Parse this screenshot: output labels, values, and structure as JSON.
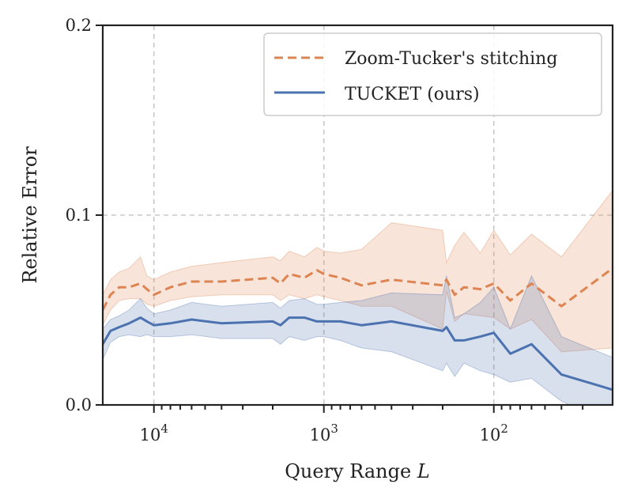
{
  "chart_data": {
    "type": "line",
    "title": "",
    "xlabel_prefix": "Query Range ",
    "xlabel_var": "L",
    "ylabel": "Relative Error",
    "x_scale": "log-reversed",
    "xlim": [
      20000,
      20
    ],
    "ylim": [
      0.0,
      0.2
    ],
    "grid": true,
    "legend_position": "top-right",
    "y_ticks": [
      {
        "value": 0.0,
        "label": "0.0"
      },
      {
        "value": 0.1,
        "label": "0.1"
      },
      {
        "value": 0.2,
        "label": "0.2"
      }
    ],
    "x_major_ticks": [
      {
        "value": 10000,
        "base": "10",
        "exp": "4"
      },
      {
        "value": 1000,
        "base": "10",
        "exp": "3"
      },
      {
        "value": 100,
        "base": "10",
        "exp": "2"
      }
    ],
    "x_minor_ticks": [
      9000,
      8000,
      7000,
      6000,
      5000,
      4000,
      3000,
      2000,
      900,
      800,
      700,
      600,
      500,
      400,
      300,
      200,
      90,
      80,
      70,
      60,
      50,
      40,
      30
    ],
    "series": [
      {
        "name": "Zoom-Tucker's stitching",
        "color": "#dd8452",
        "style": "dashed",
        "x": [
          20000,
          18000,
          16000,
          14000,
          12000,
          11000,
          10000,
          8000,
          6000,
          4000,
          2000,
          1800,
          1600,
          1300,
          1100,
          1000,
          800,
          600,
          400,
          200,
          190,
          170,
          150,
          120,
          100,
          80,
          60,
          40,
          20
        ],
        "y": [
          0.05,
          0.058,
          0.062,
          0.062,
          0.064,
          0.061,
          0.058,
          0.062,
          0.065,
          0.065,
          0.067,
          0.064,
          0.069,
          0.067,
          0.071,
          0.069,
          0.067,
          0.063,
          0.066,
          0.063,
          0.066,
          0.058,
          0.062,
          0.061,
          0.064,
          0.055,
          0.064,
          0.052,
          0.072
        ],
        "lower": [
          0.042,
          0.05,
          0.055,
          0.056,
          0.056,
          0.053,
          0.052,
          0.055,
          0.057,
          0.058,
          0.058,
          0.055,
          0.058,
          0.056,
          0.058,
          0.057,
          0.055,
          0.052,
          0.052,
          0.04,
          0.06,
          0.044,
          0.048,
          0.047,
          0.046,
          0.04,
          0.045,
          0.028,
          0.03
        ],
        "upper": [
          0.058,
          0.066,
          0.07,
          0.072,
          0.078,
          0.068,
          0.066,
          0.07,
          0.073,
          0.075,
          0.078,
          0.076,
          0.081,
          0.078,
          0.083,
          0.081,
          0.08,
          0.082,
          0.096,
          0.092,
          0.075,
          0.084,
          0.091,
          0.08,
          0.092,
          0.079,
          0.09,
          0.078,
          0.113
        ]
      },
      {
        "name": "TUCKET (ours)",
        "color": "#4c72b0",
        "style": "solid",
        "x": [
          20000,
          18000,
          16000,
          14000,
          12000,
          11000,
          10000,
          8000,
          6000,
          4000,
          2000,
          1800,
          1600,
          1300,
          1100,
          1000,
          800,
          600,
          400,
          200,
          190,
          170,
          150,
          120,
          100,
          80,
          60,
          40,
          20
        ],
        "y": [
          0.032,
          0.039,
          0.041,
          0.043,
          0.046,
          0.044,
          0.042,
          0.043,
          0.045,
          0.043,
          0.044,
          0.042,
          0.046,
          0.046,
          0.044,
          0.044,
          0.044,
          0.042,
          0.044,
          0.039,
          0.041,
          0.034,
          0.034,
          0.036,
          0.038,
          0.027,
          0.032,
          0.016,
          0.008
        ],
        "lower": [
          0.024,
          0.033,
          0.036,
          0.037,
          0.036,
          0.037,
          0.036,
          0.036,
          0.037,
          0.035,
          0.035,
          0.032,
          0.036,
          0.034,
          0.036,
          0.036,
          0.034,
          0.03,
          0.028,
          0.018,
          0.022,
          0.015,
          0.022,
          0.018,
          0.016,
          0.012,
          0.014,
          0.002,
          -0.01
        ],
        "upper": [
          0.04,
          0.045,
          0.047,
          0.05,
          0.056,
          0.051,
          0.048,
          0.05,
          0.054,
          0.052,
          0.054,
          0.051,
          0.055,
          0.056,
          0.053,
          0.053,
          0.054,
          0.055,
          0.059,
          0.058,
          0.068,
          0.046,
          0.048,
          0.054,
          0.062,
          0.04,
          0.068,
          0.036,
          0.025
        ]
      }
    ]
  }
}
